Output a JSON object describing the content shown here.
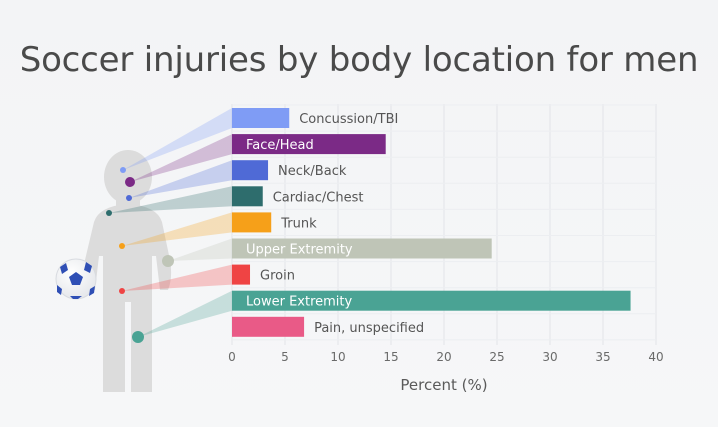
{
  "chart_data": {
    "type": "bar",
    "orientation": "horizontal",
    "title": "Soccer injuries by body location for men",
    "xlabel": "Percent (%)",
    "ylabel": "",
    "xlim": [
      0,
      40
    ],
    "xticks": [
      0,
      5,
      10,
      15,
      20,
      25,
      30,
      35,
      40
    ],
    "grid": true,
    "categories": [
      "Concussion/TBI",
      "Face/Head",
      "Neck/Back",
      "Cardiac/Chest",
      "Trunk",
      "Upper Extremity",
      "Groin",
      "Lower Extremity",
      "Pain, unspecified"
    ],
    "values": [
      5.4,
      14.5,
      3.4,
      2.9,
      3.7,
      24.5,
      1.7,
      37.6,
      6.8
    ],
    "colors": [
      "#7f9cf5",
      "#7b2a86",
      "#4f6ad6",
      "#2e6d6d",
      "#f6a019",
      "#bfc5b7",
      "#ef4444",
      "#4aa394",
      "#e95a87"
    ],
    "label_inside": [
      false,
      true,
      false,
      false,
      false,
      true,
      false,
      true,
      false
    ],
    "label_colors": {
      "inside": "#ffffff",
      "outside": "#555555"
    },
    "icons": [
      "person-silhouette-icon",
      "soccer-ball-icon"
    ]
  }
}
